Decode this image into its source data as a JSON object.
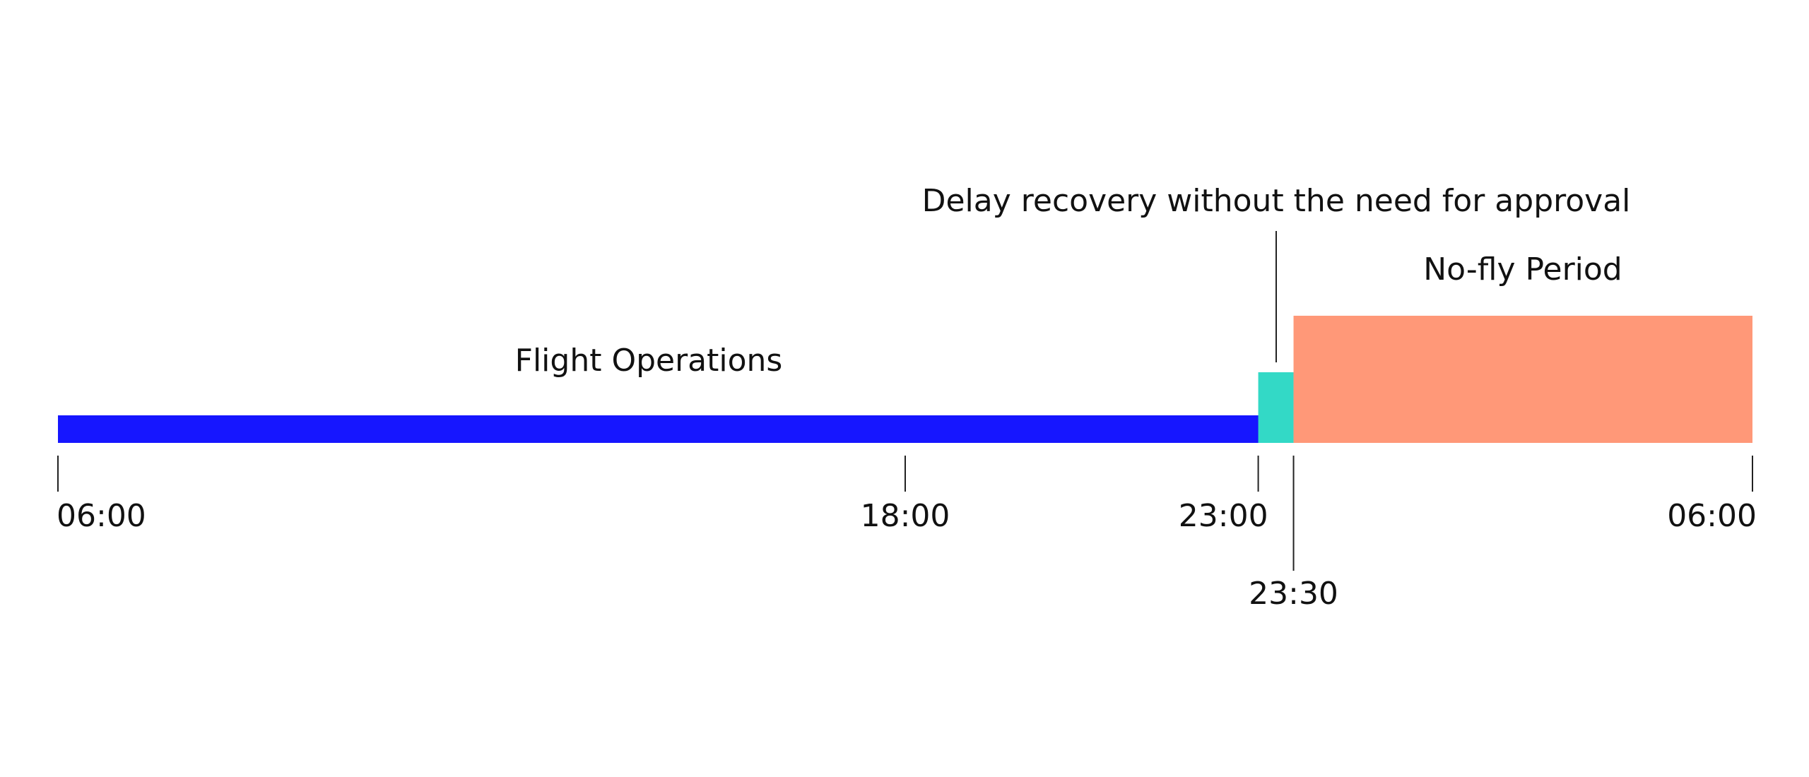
{
  "chart_data": {
    "type": "timeline",
    "xlim": [
      6,
      30
    ],
    "xticks": [
      {
        "value": 6,
        "label": "06:00"
      },
      {
        "value": 18,
        "label": "18:00"
      },
      {
        "value": 23,
        "label": "23:00"
      },
      {
        "value": 23.5,
        "label": "23:30"
      },
      {
        "value": 30,
        "label": "06:00"
      }
    ],
    "segments": [
      {
        "name": "Flight Operations",
        "start": 6,
        "end": 23.5,
        "color": "#1616ff"
      },
      {
        "name": "Delay recovery without the need for approval",
        "start": 23,
        "end": 23.5,
        "color": "#33d9c6"
      },
      {
        "name": "No-fly Period",
        "start": 23.5,
        "end": 30,
        "color": "#ff9878"
      }
    ]
  }
}
